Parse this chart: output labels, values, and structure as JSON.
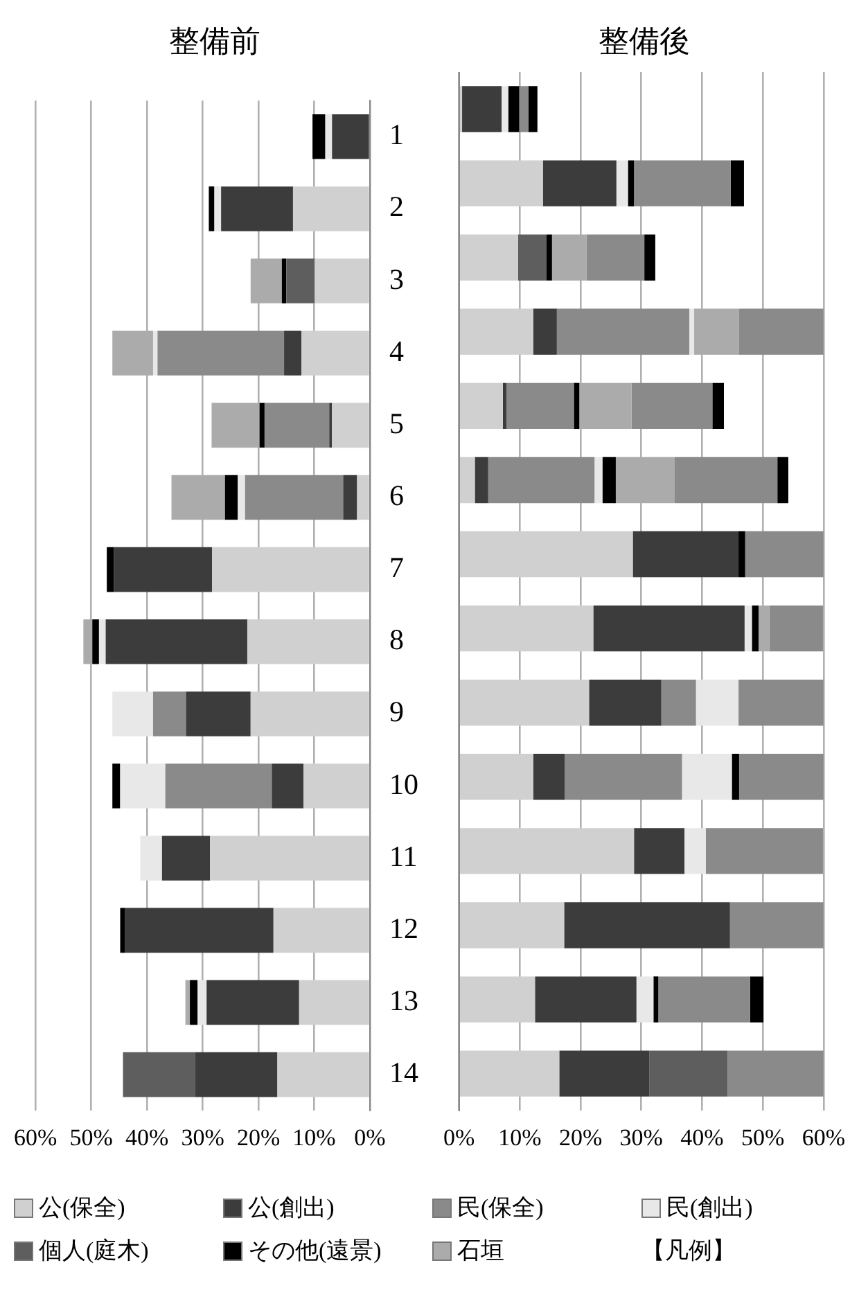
{
  "chart_data": [
    {
      "type": "bar",
      "title": "整備前",
      "orientation": "horizontal",
      "stacked": true,
      "categories": [
        "1",
        "2",
        "3",
        "4",
        "5",
        "6",
        "7",
        "8",
        "9",
        "10",
        "11",
        "12",
        "13",
        "14"
      ],
      "xlim": [
        60,
        0
      ],
      "xticks": [
        {
          "value": 60,
          "label": "60%"
        },
        {
          "value": 50,
          "label": "50%"
        },
        {
          "value": 40,
          "label": "40%"
        },
        {
          "value": 30,
          "label": "30%"
        },
        {
          "value": 20,
          "label": "20%"
        },
        {
          "value": 10,
          "label": "10%"
        },
        {
          "value": 0,
          "label": "0%"
        }
      ],
      "grid": "x",
      "legend": "bottom",
      "legend_title": "【凡例】",
      "series": [
        {
          "name": "公(保全)",
          "color": "#d0d0d0",
          "values": [
            0,
            13.8,
            9.9,
            12.3,
            6.8,
            2.3,
            28.3,
            22.0,
            21.4,
            11.9,
            28.7,
            17.3,
            12.7,
            16.6
          ]
        },
        {
          "name": "公(創出)",
          "color": "#3c3c3c",
          "values": [
            6.8,
            12.9,
            0,
            3.1,
            0.5,
            2.5,
            17.6,
            25.4,
            11.6,
            5.7,
            8.6,
            26.6,
            16.6,
            14.8
          ]
        },
        {
          "name": "民(保全)",
          "color": "#8a8a8a",
          "values": [
            0,
            0,
            0,
            22.7,
            11.6,
            17.6,
            0,
            0,
            5.9,
            19.1,
            0,
            0,
            0,
            0
          ]
        },
        {
          "name": "民(創出)",
          "color": "#e8e8e8",
          "values": [
            1.2,
            1.2,
            0,
            0.8,
            0,
            1.3,
            0,
            1.2,
            7.3,
            8.1,
            3.9,
            0,
            1.6,
            0
          ]
        },
        {
          "name": "個人(庭木)",
          "color": "#5e5e5e",
          "values": [
            0,
            0,
            5.1,
            0,
            0,
            0,
            0,
            0,
            0,
            0,
            0,
            0,
            0,
            12.9
          ]
        },
        {
          "name": "その他(遠景)",
          "color": "#000000",
          "values": [
            2.3,
            1.0,
            0.8,
            0,
            0.9,
            2.3,
            1.3,
            1.2,
            0,
            1.4,
            0,
            0.9,
            1.4,
            0
          ]
        },
        {
          "name": "石垣",
          "color": "#ababab",
          "values": [
            0,
            0,
            5.6,
            7.3,
            8.6,
            9.6,
            0,
            1.6,
            0,
            0,
            0,
            0,
            0.8,
            0
          ]
        }
      ]
    },
    {
      "type": "bar",
      "title": "整備後",
      "orientation": "horizontal",
      "stacked": true,
      "categories": [
        "1",
        "2",
        "3",
        "4",
        "5",
        "6",
        "7",
        "8",
        "9",
        "10",
        "11",
        "12",
        "13",
        "14"
      ],
      "xlim": [
        0,
        60
      ],
      "xticks": [
        {
          "value": 0,
          "label": "0%"
        },
        {
          "value": 10,
          "label": "10%"
        },
        {
          "value": 20,
          "label": "20%"
        },
        {
          "value": 30,
          "label": "30%"
        },
        {
          "value": 40,
          "label": "40%"
        },
        {
          "value": 50,
          "label": "50%"
        },
        {
          "value": 60,
          "label": "60%"
        }
      ],
      "grid": "x",
      "tick_labels": "x",
      "series": [
        {
          "color": "#d0d0d0",
          "values": [
            0.5,
            13.8,
            9.7,
            12.2,
            7.2,
            2.6,
            28.6,
            22.1,
            21.4,
            12.2,
            28.8,
            17.3,
            12.5,
            16.5
          ]
        },
        {
          "color": "#3c3c3c",
          "values": [
            6.5,
            12.1,
            0,
            3.9,
            0.6,
            2.2,
            17.4,
            24.9,
            11.9,
            5.2,
            8.3,
            27.3,
            16.7,
            14.8
          ]
        },
        {
          "color": "#8a8a8a",
          "values": [
            0,
            0,
            0,
            21.8,
            11.1,
            17.5,
            0,
            0,
            5.7,
            19.3,
            0,
            0,
            0,
            0
          ]
        },
        {
          "color": "#e8e8e8",
          "values": [
            1.1,
            1.9,
            0,
            0.8,
            0,
            1.3,
            0,
            1.2,
            7.0,
            8.2,
            3.5,
            0,
            2.8,
            0
          ]
        },
        {
          "color": "#5e5e5e",
          "values": [
            0,
            0,
            4.7,
            0,
            0,
            0,
            0,
            0,
            0,
            0,
            0,
            0,
            0,
            12.9
          ]
        },
        {
          "color": "#000000",
          "values": [
            1.8,
            1.0,
            0.9,
            0,
            0.9,
            2.2,
            1.1,
            1.1,
            0,
            1.2,
            0,
            0,
            0.8,
            0
          ]
        },
        {
          "color": "#ababab",
          "values": [
            0,
            0,
            5.7,
            7.4,
            8.6,
            9.7,
            0,
            1.8,
            0,
            0,
            0,
            0,
            0,
            0
          ]
        },
        {
          "color": "#8a8a8a",
          "values": [
            1.5,
            15.9,
            9.5,
            13.9,
            13.3,
            16.9,
            12.9,
            8.8,
            14.0,
            13.9,
            19.3,
            15.4,
            15.1,
            15.8
          ]
        },
        {
          "color": "#000000",
          "values": [
            1.5,
            2.2,
            1.8,
            0,
            1.9,
            1.8,
            0,
            0,
            0,
            0,
            0,
            0,
            2.2,
            0
          ]
        }
      ]
    }
  ]
}
